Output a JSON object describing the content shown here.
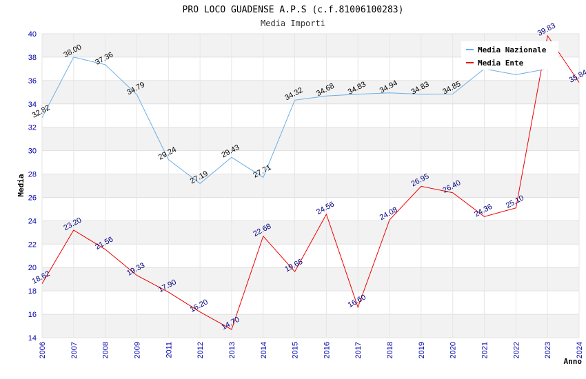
{
  "chart_data": {
    "type": "line",
    "title": "PRO LOCO GUADENSE A.P.S (c.f.81006100283)",
    "subtitle": "Media Importi",
    "xlabel": "Anno",
    "ylabel": "Media",
    "ylim": [
      14,
      40
    ],
    "yticks": [
      "14",
      "16",
      "18",
      "20",
      "22",
      "24",
      "26",
      "28",
      "30",
      "32",
      "34",
      "36",
      "38",
      "40"
    ],
    "categories": [
      "2006",
      "2007",
      "2008",
      "2009",
      "2011",
      "2012",
      "2013",
      "2014",
      "2015",
      "2016",
      "2017",
      "2018",
      "2019",
      "2020",
      "2021",
      "2022",
      "2023",
      "2024"
    ],
    "legend_position": "top-right",
    "grid": true,
    "series": [
      {
        "name": "Media Nazionale",
        "color": "#6aaee8",
        "values": [
          32.82,
          38.0,
          37.36,
          34.79,
          29.24,
          27.19,
          29.43,
          27.71,
          34.32,
          34.68,
          34.83,
          34.94,
          34.83,
          34.85,
          37.0,
          36.5,
          37.0,
          null
        ],
        "labels": [
          "32.82",
          "38.00",
          "37.36",
          "34.79",
          "29.24",
          "27.19",
          "29.43",
          "27.71",
          "34.32",
          "34.68",
          "34.83",
          "34.94",
          "34.83",
          "34.85",
          "",
          "",
          "",
          ""
        ]
      },
      {
        "name": "Media Ente",
        "color": "#ee0000",
        "values": [
          18.62,
          23.2,
          21.56,
          19.33,
          17.9,
          16.2,
          14.7,
          22.68,
          19.65,
          24.56,
          16.6,
          24.08,
          26.95,
          26.4,
          24.36,
          25.1,
          39.83,
          35.84
        ],
        "labels": [
          "18.62",
          "23.20",
          "21.56",
          "19.33",
          "17.90",
          "16.20",
          "14.70",
          "22.68",
          "19.65",
          "24.56",
          "16.60",
          "24.08",
          "26.95",
          "26.40",
          "24.36",
          "25.10",
          "39.83",
          "35.84"
        ]
      }
    ]
  }
}
